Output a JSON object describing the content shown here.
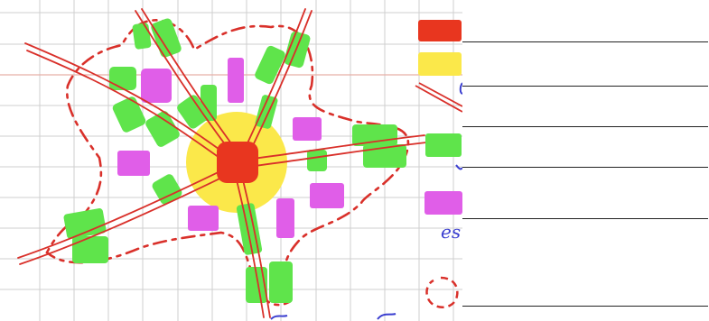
{
  "colors": {
    "centre": "#e8361f",
    "centre_halo": "#fbe84a",
    "green_zone": "#5fe44b",
    "pink_zone": "#e05ee8",
    "road": "#d9302a",
    "boundary": "#d9302a",
    "grid": "#cfcfcf",
    "handwriting": "#3b3fd0"
  },
  "legend": {
    "swatches": [
      "centre-red",
      "halo-yellow",
      "road-double-line",
      "green-zone",
      "pink-zone",
      "boundary-dashed-circle"
    ],
    "visible_handwriting": [
      "es"
    ]
  },
  "answer_lines": 6
}
